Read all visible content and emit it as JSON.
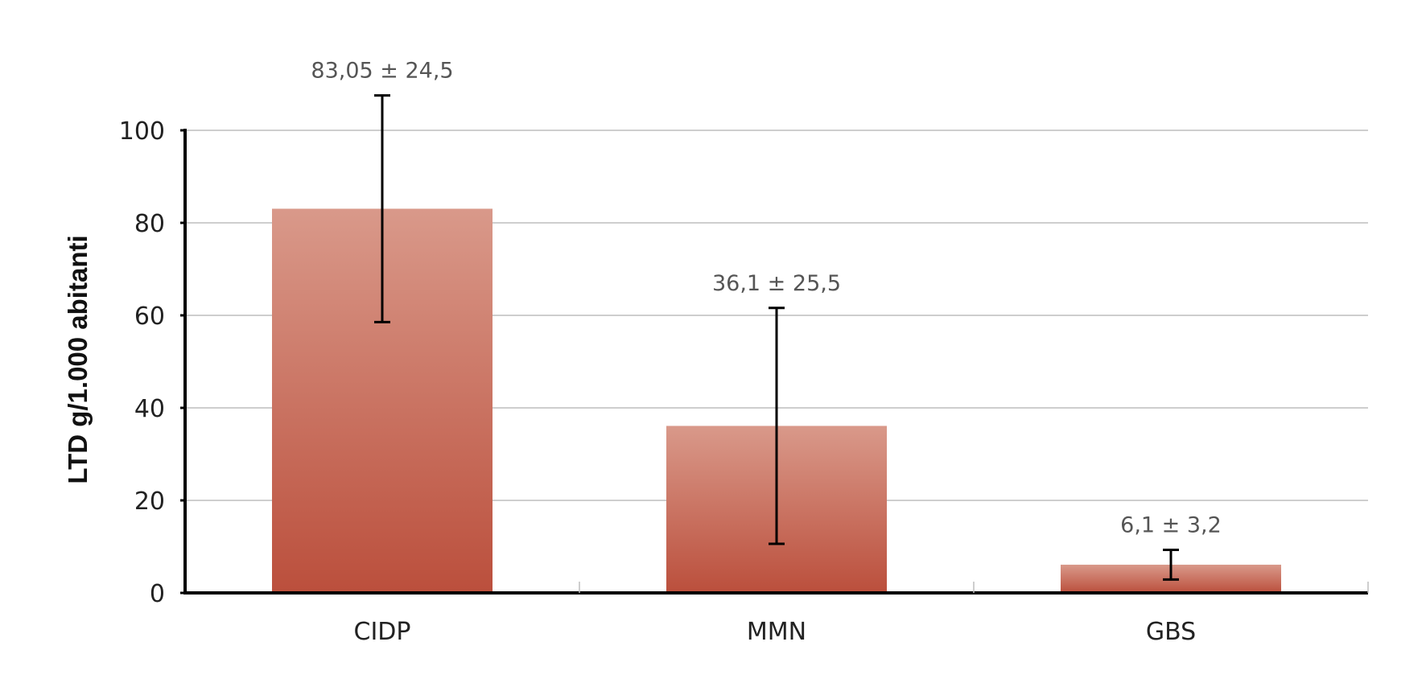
{
  "chart_data": {
    "type": "bar",
    "title": "",
    "xlabel": "",
    "ylabel": "LTD g/1.000 abitanti",
    "ylim": [
      0,
      100
    ],
    "yticks": [
      0,
      20,
      40,
      60,
      80,
      100
    ],
    "grid": true,
    "categories": [
      "CIDP",
      "MMN",
      "GBS"
    ],
    "values": [
      83.05,
      36.1,
      6.1
    ],
    "errors": [
      24.5,
      25.5,
      3.2
    ],
    "data_labels": [
      "83,05 ± 24,5",
      "36,1 ± 25,5",
      "6,1 ± 3,2"
    ],
    "colors": {
      "bar_top": "#d9998a",
      "bar_bottom": "#bb4f3c",
      "grid": "#bdbdbd",
      "axis": "#000000"
    }
  }
}
